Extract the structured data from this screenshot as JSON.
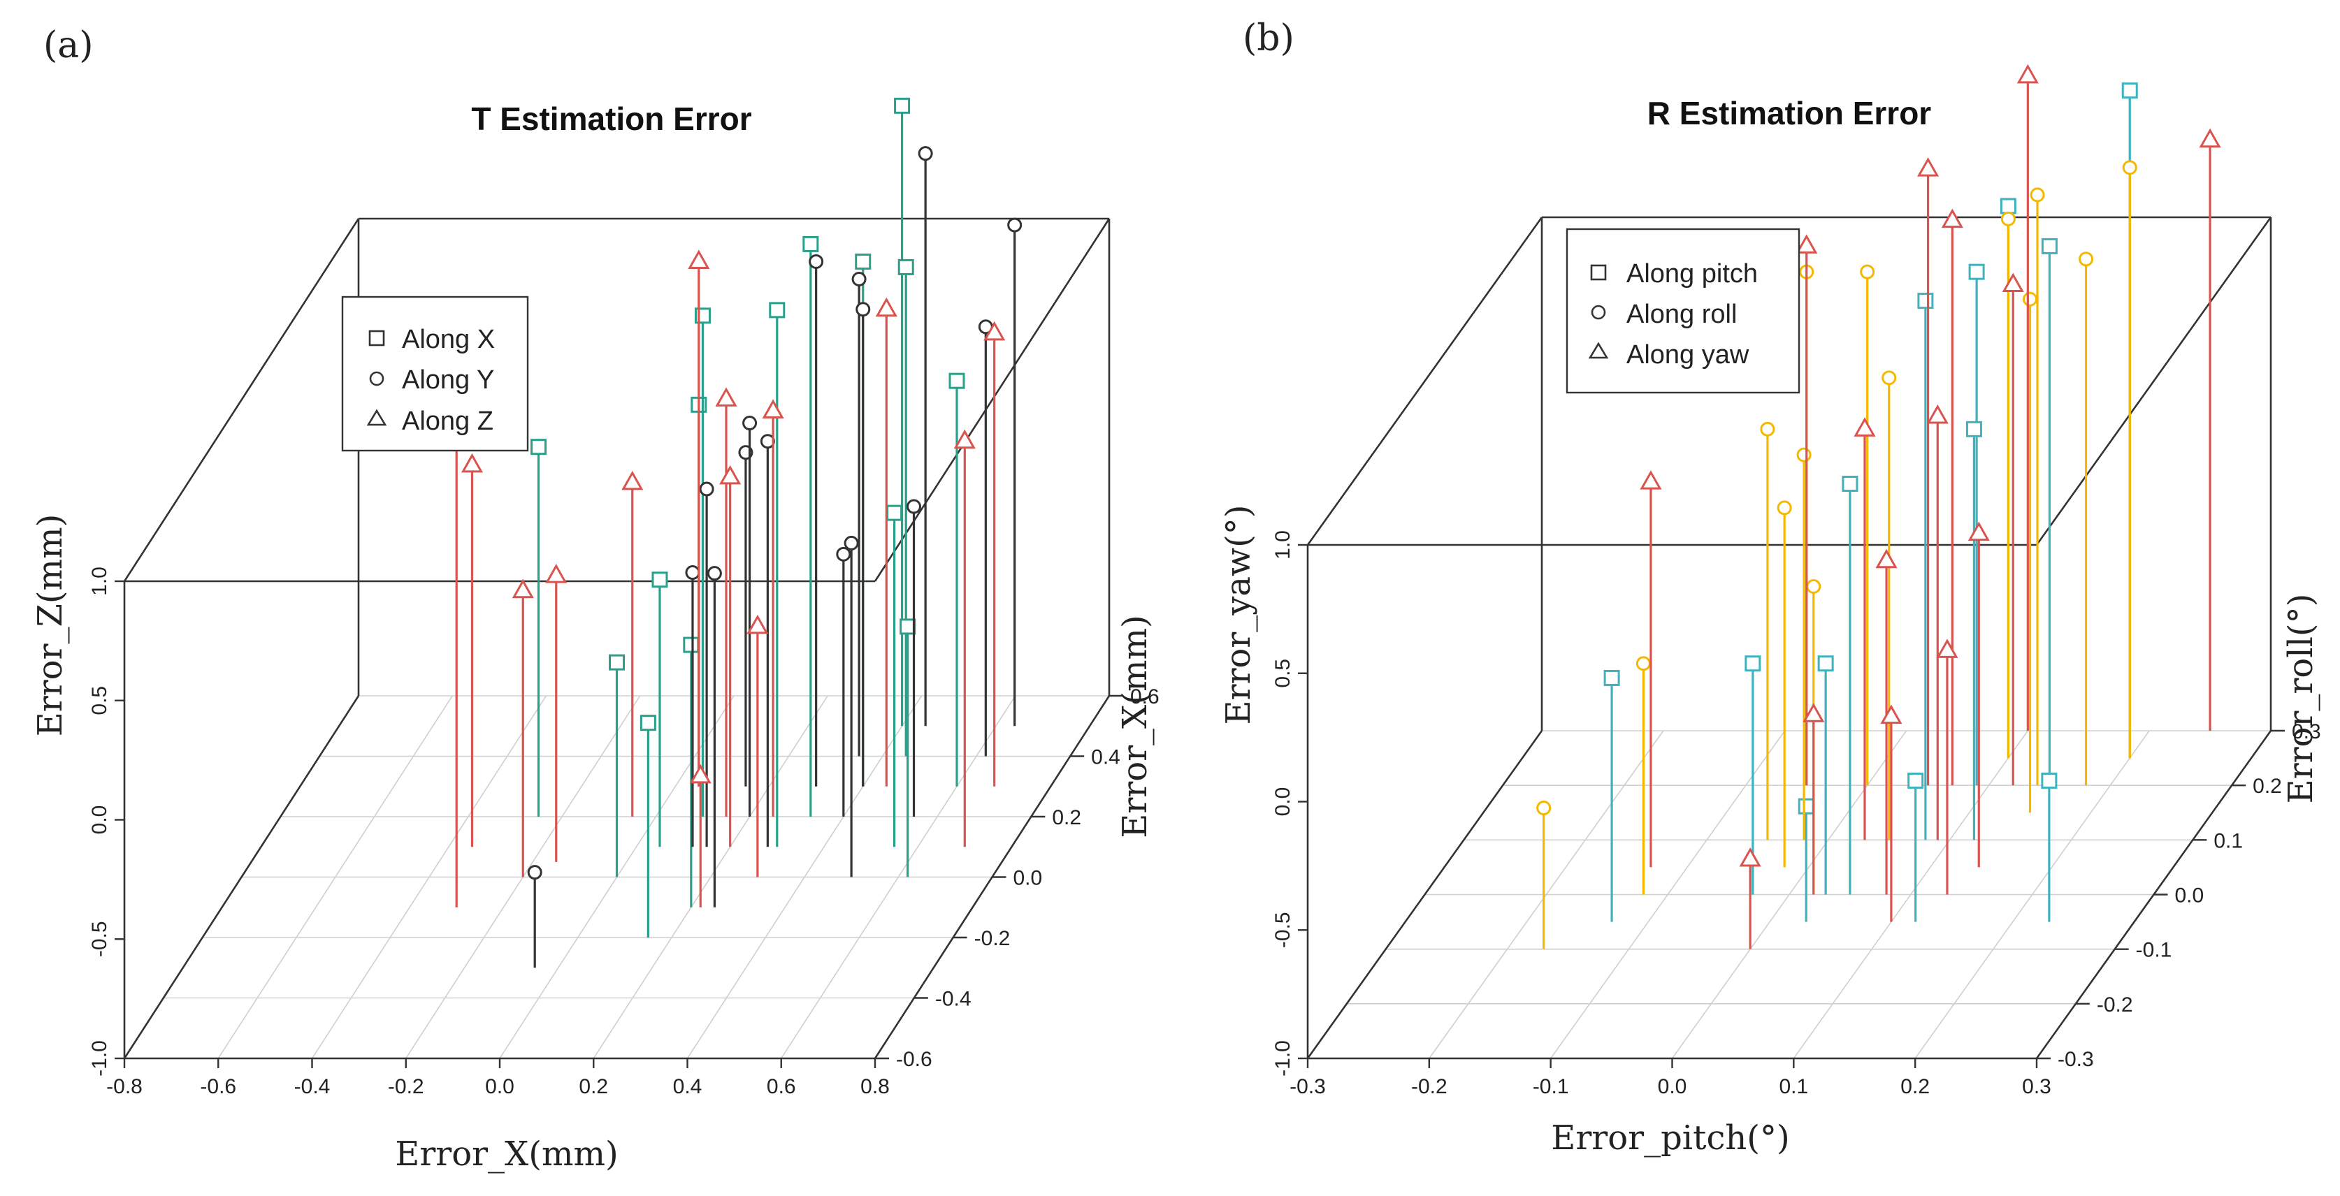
{
  "colors": {
    "red": "#d9534f",
    "teal": "#2aa08a",
    "black": "#333333",
    "cyan": "#3fb3bd",
    "yellow": "#f5b800"
  },
  "chart_data": [
    {
      "type": "scatter3d",
      "panel_label": "(a)",
      "title": "T Estimation Error",
      "xlabel": "Error_X(mm)",
      "ylabel": "Error_X(mm)",
      "zlabel": "Error_Z(mm)",
      "xlim": [
        -0.8,
        0.8
      ],
      "ylim": [
        -0.6,
        0.6
      ],
      "zlim": [
        -1.0,
        1.0
      ],
      "x_ticks": [
        "-0.8",
        "-0.6",
        "-0.4",
        "-0.2",
        "0.0",
        "0.2",
        "0.4",
        "0.6",
        "0.8"
      ],
      "y_ticks": [
        "-0.6",
        "-0.4",
        "-0.2",
        "0.0",
        "0.2",
        "0.4",
        "0.6"
      ],
      "z_ticks": [
        "-1.0",
        "-0.5",
        "0.0",
        "0.5",
        "1.0"
      ],
      "legend": [
        {
          "label": "Along X",
          "marker": "square"
        },
        {
          "label": "Along Y",
          "marker": "circle"
        },
        {
          "label": "Along Z",
          "marker": "triangle"
        }
      ],
      "series": [
        {
          "name": "Along X",
          "marker": "square",
          "color": "#2aa08a",
          "points": [
            {
              "x": -0.25,
              "y": 0.2,
              "z": 0.55
            },
            {
              "x": 0.0,
              "y": 0.0,
              "z": -0.1
            },
            {
              "x": 0.05,
              "y": 0.1,
              "z": 0.12
            },
            {
              "x": 0.05,
              "y": 0.3,
              "z": 0.6
            },
            {
              "x": 0.1,
              "y": 0.2,
              "z": 1.1
            },
            {
              "x": 0.15,
              "y": -0.2,
              "z": -0.1
            },
            {
              "x": 0.2,
              "y": -0.1,
              "z": 0.1
            },
            {
              "x": 0.3,
              "y": 0.1,
              "z": 1.25
            },
            {
              "x": 0.33,
              "y": 0.2,
              "z": 1.4
            },
            {
              "x": 0.4,
              "y": 0.3,
              "z": 1.2
            },
            {
              "x": 0.4,
              "y": 0.5,
              "z": 1.6
            },
            {
              "x": 0.45,
              "y": 0.4,
              "z": 1.05
            },
            {
              "x": 0.55,
              "y": 0.1,
              "z": 0.4
            },
            {
              "x": 0.6,
              "y": 0.3,
              "z": 0.7
            },
            {
              "x": 0.62,
              "y": 0.0,
              "z": 0.05
            }
          ]
        },
        {
          "name": "Along Y",
          "marker": "circle",
          "color": "#333333",
          "points": [
            {
              "x": -0.05,
              "y": -0.3,
              "z": -0.6
            },
            {
              "x": 0.12,
              "y": 0.1,
              "z": 0.15
            },
            {
              "x": 0.15,
              "y": 0.1,
              "z": 0.5
            },
            {
              "x": 0.15,
              "y": 0.3,
              "z": 0.4
            },
            {
              "x": 0.2,
              "y": 0.2,
              "z": 0.65
            },
            {
              "x": 0.25,
              "y": -0.1,
              "z": 0.4
            },
            {
              "x": 0.28,
              "y": 0.1,
              "z": 0.7
            },
            {
              "x": 0.3,
              "y": 0.3,
              "z": 1.2
            },
            {
              "x": 0.35,
              "y": 0.4,
              "z": 1.0
            },
            {
              "x": 0.4,
              "y": 0.2,
              "z": 0.1
            },
            {
              "x": 0.4,
              "y": 0.3,
              "z": 1.0
            },
            {
              "x": 0.45,
              "y": 0.5,
              "z": 1.4
            },
            {
              "x": 0.5,
              "y": 0.0,
              "z": 0.4
            },
            {
              "x": 0.55,
              "y": 0.2,
              "z": 0.3
            },
            {
              "x": 0.62,
              "y": 0.4,
              "z": 0.8
            },
            {
              "x": 0.64,
              "y": 0.5,
              "z": 1.1
            }
          ]
        },
        {
          "name": "Along Z",
          "marker": "triangle",
          "color": "#d9534f",
          "points": [
            {
              "x": -0.35,
              "y": 0.1,
              "z": 0.6
            },
            {
              "x": -0.3,
              "y": -0.1,
              "z": 1.0
            },
            {
              "x": -0.2,
              "y": 0.0,
              "z": 0.2
            },
            {
              "x": -0.15,
              "y": 0.05,
              "z": 0.2
            },
            {
              "x": -0.05,
              "y": 0.2,
              "z": 0.4
            },
            {
              "x": 0.05,
              "y": 0.3,
              "z": 1.2
            },
            {
              "x": 0.15,
              "y": 0.2,
              "z": 0.75
            },
            {
              "x": 0.2,
              "y": 0.1,
              "z": 0.55
            },
            {
              "x": 0.22,
              "y": -0.1,
              "z": -0.45
            },
            {
              "x": 0.25,
              "y": 0.2,
              "z": 0.7
            },
            {
              "x": 0.3,
              "y": 0.0,
              "z": 0.05
            },
            {
              "x": 0.45,
              "y": 0.3,
              "z": 1.0
            },
            {
              "x": 0.68,
              "y": 0.3,
              "z": 0.9
            },
            {
              "x": 0.7,
              "y": 0.1,
              "z": 0.7
            }
          ]
        }
      ]
    },
    {
      "type": "scatter3d",
      "panel_label": "(b)",
      "title": "R Estimation Error",
      "xlabel": "Error_pitch(°)",
      "ylabel": "Error_roll(°)",
      "zlabel": "Error_yaw(°)",
      "xlim": [
        -0.3,
        0.3
      ],
      "ylim": [
        -0.3,
        0.3
      ],
      "zlim": [
        -1.0,
        1.0
      ],
      "x_ticks": [
        "-0.3",
        "-0.2",
        "-0.1",
        "0.0",
        "0.1",
        "0.2",
        "0.3"
      ],
      "y_ticks": [
        "-0.3",
        "-0.2",
        "-0.1",
        "0.0",
        "0.1",
        "0.2",
        "0.3"
      ],
      "z_ticks": [
        "-1.0",
        "-0.5",
        "0.0",
        "0.5",
        "1.0"
      ],
      "legend": [
        {
          "label": "Along pitch",
          "marker": "square"
        },
        {
          "label": "Along roll",
          "marker": "circle"
        },
        {
          "label": "Along yaw",
          "marker": "triangle"
        }
      ],
      "series": [
        {
          "name": "Along pitch",
          "marker": "square",
          "color": "#3fb3bd",
          "points": [
            {
              "x": -0.13,
              "y": -0.05,
              "z": -0.05
            },
            {
              "x": -0.03,
              "y": 0.0,
              "z": -0.1
            },
            {
              "x": 0.03,
              "y": 0.0,
              "z": -0.1
            },
            {
              "x": 0.05,
              "y": 0.0,
              "z": 0.6
            },
            {
              "x": 0.08,
              "y": 0.1,
              "z": 1.1
            },
            {
              "x": 0.09,
              "y": 0.2,
              "z": 1.0
            },
            {
              "x": 0.1,
              "y": 0.25,
              "z": 1.15
            },
            {
              "x": 0.03,
              "y": -0.05,
              "z": -0.55
            },
            {
              "x": 0.12,
              "y": -0.05,
              "z": -0.45
            },
            {
              "x": 0.12,
              "y": 0.1,
              "z": 0.6
            },
            {
              "x": 0.15,
              "y": 0.2,
              "z": 1.1
            },
            {
              "x": 0.2,
              "y": 0.25,
              "z": 1.6
            },
            {
              "x": 0.23,
              "y": -0.05,
              "z": -0.45
            }
          ]
        },
        {
          "name": "Along roll",
          "marker": "circle",
          "color": "#f5b800",
          "points": [
            {
              "x": -0.17,
              "y": -0.1,
              "z": -0.45
            },
            {
              "x": -0.12,
              "y": 0.0,
              "z": -0.1
            },
            {
              "x": -0.05,
              "y": 0.1,
              "z": 0.6
            },
            {
              "x": -0.05,
              "y": 0.2,
              "z": 1.0
            },
            {
              "x": -0.02,
              "y": 0.1,
              "z": 0.5
            },
            {
              "x": -0.02,
              "y": 0.05,
              "z": 0.4
            },
            {
              "x": 0.0,
              "y": 0.2,
              "z": 1.0
            },
            {
              "x": 0.02,
              "y": 0.0,
              "z": 0.2
            },
            {
              "x": 0.05,
              "y": 0.1,
              "z": 0.8
            },
            {
              "x": 0.1,
              "y": 0.25,
              "z": 1.1
            },
            {
              "x": 0.14,
              "y": 0.2,
              "z": 1.3
            },
            {
              "x": 0.15,
              "y": 0.15,
              "z": 1.0
            },
            {
              "x": 0.18,
              "y": 0.2,
              "z": 1.05
            },
            {
              "x": 0.2,
              "y": 0.25,
              "z": 1.3
            }
          ]
        },
        {
          "name": "Along yaw",
          "marker": "triangle",
          "color": "#d9534f",
          "points": [
            {
              "x": -0.13,
              "y": 0.05,
              "z": 0.5
            },
            {
              "x": -0.05,
              "y": 0.2,
              "z": 1.1
            },
            {
              "x": 0.0,
              "y": -0.1,
              "z": -0.65
            },
            {
              "x": 0.02,
              "y": 0.0,
              "z": -0.3
            },
            {
              "x": 0.03,
              "y": 0.1,
              "z": 0.6
            },
            {
              "x": 0.05,
              "y": 0.2,
              "z": 1.4
            },
            {
              "x": 0.07,
              "y": 0.2,
              "z": 1.2
            },
            {
              "x": 0.08,
              "y": 0.0,
              "z": 0.3
            },
            {
              "x": 0.09,
              "y": 0.1,
              "z": 0.65
            },
            {
              "x": 0.1,
              "y": 0.3,
              "z": 1.55
            },
            {
              "x": 0.1,
              "y": -0.05,
              "z": -0.2
            },
            {
              "x": 0.12,
              "y": 0.2,
              "z": 0.95
            },
            {
              "x": 0.13,
              "y": 0.0,
              "z": -0.05
            },
            {
              "x": 0.14,
              "y": 0.05,
              "z": 0.3
            },
            {
              "x": 0.25,
              "y": 0.3,
              "z": 1.3
            }
          ]
        }
      ]
    }
  ]
}
